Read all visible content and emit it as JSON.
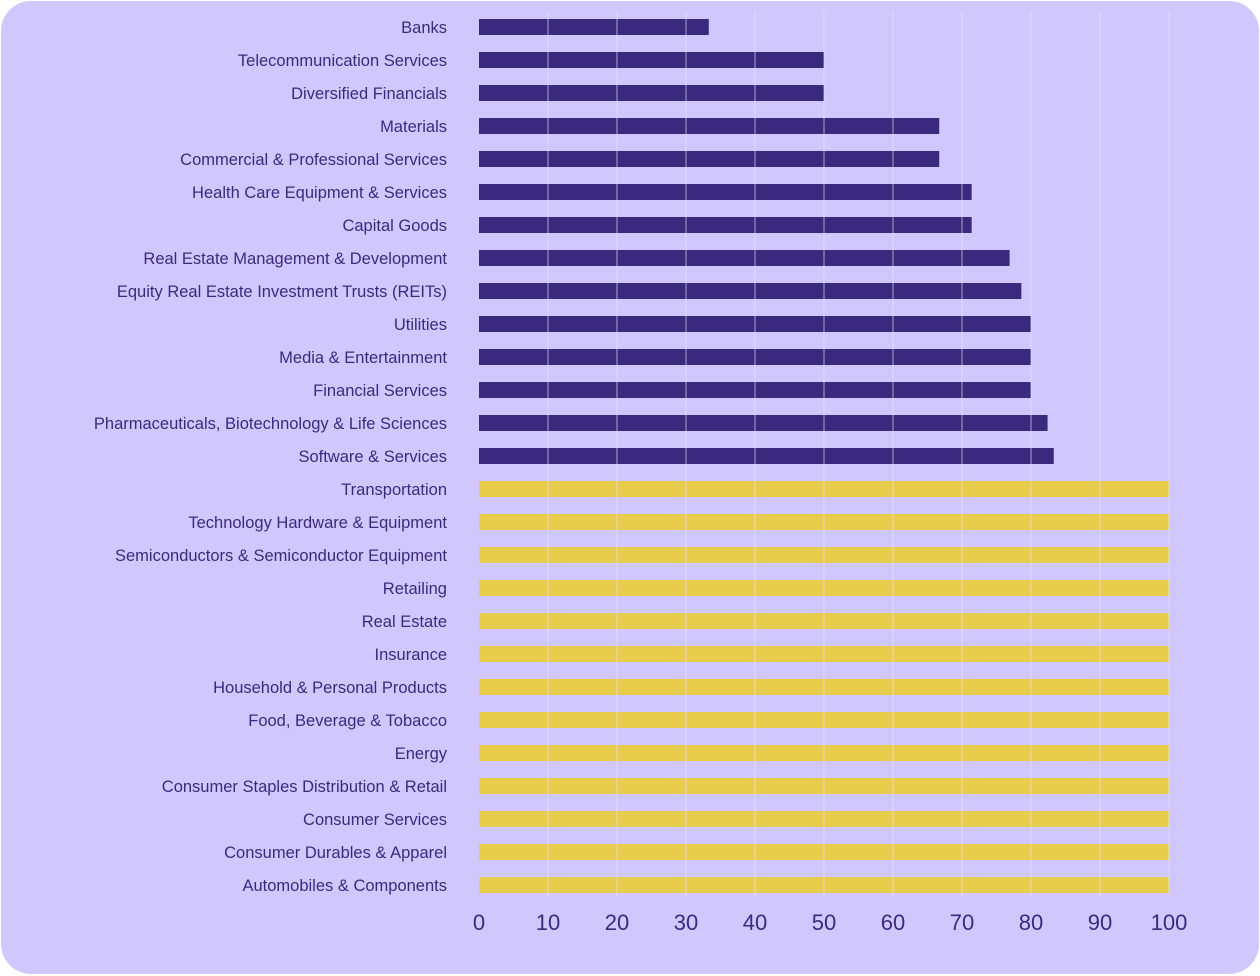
{
  "chart_data": {
    "type": "bar",
    "orientation": "horizontal",
    "title": "",
    "xlabel": "",
    "ylabel": "",
    "xlim": [
      0,
      100
    ],
    "x_ticks": [
      "0",
      "10",
      "20",
      "30",
      "40",
      "50",
      "60",
      "70",
      "80",
      "90",
      "100"
    ],
    "grid": "vertical",
    "colors": {
      "background": "#d0c8fd",
      "below_100": "#3a2a7e",
      "at_100": "#e8cd4c",
      "text": "#3a2a7e",
      "grid": "#e6e0ff"
    },
    "categories": [
      "Banks",
      "Telecommunication Services",
      "Diversified Financials",
      "Materials",
      "Commercial & Professional Services",
      "Health Care Equipment & Services",
      "Capital Goods",
      "Real Estate Management & Development",
      "Equity Real Estate Investment Trusts (REITs)",
      "Utilities",
      "Media & Entertainment",
      "Financial Services",
      "Pharmaceuticals, Biotechnology & Life Sciences",
      "Software & Services",
      "Transportation",
      "Technology Hardware & Equipment",
      "Semiconductors & Semiconductor Equipment",
      "Retailing",
      "Real Estate",
      "Insurance",
      "Household & Personal Products",
      "Food, Beverage & Tobacco",
      "Energy",
      "Consumer Staples Distribution & Retail",
      "Consumer Services",
      "Consumer Durables & Apparel",
      "Automobiles & Components"
    ],
    "values": [
      33.3,
      50,
      50,
      66.7,
      66.7,
      71.4,
      71.4,
      76.9,
      78.6,
      80,
      80,
      80,
      82.4,
      83.3,
      100,
      100,
      100,
      100,
      100,
      100,
      100,
      100,
      100,
      100,
      100,
      100,
      100
    ]
  }
}
